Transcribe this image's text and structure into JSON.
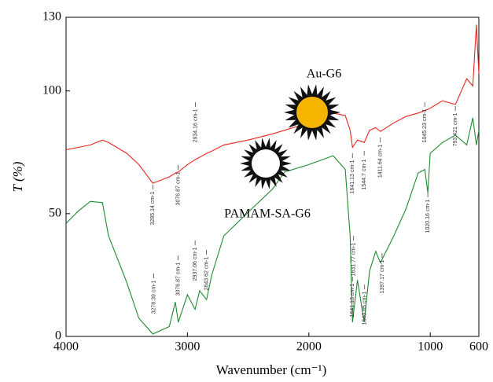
{
  "chart_data": {
    "type": "line",
    "xlabel": "Wavenumber (cm⁻¹)",
    "ylabel": "T (%)",
    "x": [
      4000,
      3900,
      3800,
      3700,
      3650,
      3500,
      3400,
      3285,
      3150,
      3100,
      3076,
      3000,
      2937,
      2900,
      2843,
      2800,
      2700,
      2500,
      2300,
      2200,
      2000,
      1800,
      1700,
      1660,
      1641,
      1600,
      1544,
      1500,
      1450,
      1411,
      1300,
      1200,
      1100,
      1045,
      1020,
      1000,
      900,
      793,
      700,
      650,
      620,
      600
    ],
    "series": [
      {
        "name": "Au-G6",
        "color": "#e8251f",
        "values": [
          76,
          77,
          78,
          80,
          79,
          74.6,
          70,
          62.4,
          65,
          66.5,
          67,
          70,
          72,
          73,
          74.5,
          75.5,
          78,
          80,
          82.5,
          84,
          87,
          91,
          90,
          84,
          77,
          80,
          79,
          84,
          85,
          83.5,
          87,
          89.6,
          91,
          92,
          92.5,
          93,
          96,
          94.5,
          105,
          102,
          127,
          107
        ]
      },
      {
        "name": "PAMAM-SA-G6",
        "color": "#1f8a2e",
        "values": [
          46,
          51,
          55,
          54.5,
          41,
          22,
          7.4,
          1,
          4,
          14,
          5.8,
          17,
          11,
          18.6,
          15,
          25,
          41,
          50.6,
          60,
          67,
          70,
          73.6,
          68,
          41,
          5.8,
          23,
          5.8,
          26.6,
          34.6,
          30,
          41,
          52,
          66.6,
          68,
          58.6,
          74.6,
          79,
          82,
          78,
          89,
          78,
          84
        ]
      }
    ],
    "annotations": [
      "3285.14 cm-1",
      "3076.87 cm-1",
      "2934.16 cm-1",
      "1641.13 cm-1",
      "1544.7 cm-1",
      "1411.64 cm-1",
      "1045.23 cm-1",
      "793.421 cm-1",
      "3278.39 cm-1",
      "3076.87 cm-1",
      "2937.06 cm-1",
      "2843.62 cm-1",
      "1631.77 cm-1",
      "1641.13 cm-1",
      "1540.85 cm-1",
      "1397.17 cm-1",
      "1020.16 cm-1"
    ],
    "xlim": [
      4000,
      600
    ],
    "ylim": [
      0,
      130
    ],
    "xticks": [
      4000,
      3000,
      2000,
      1000,
      600
    ],
    "yticks": [
      0,
      50,
      100,
      130
    ]
  }
}
